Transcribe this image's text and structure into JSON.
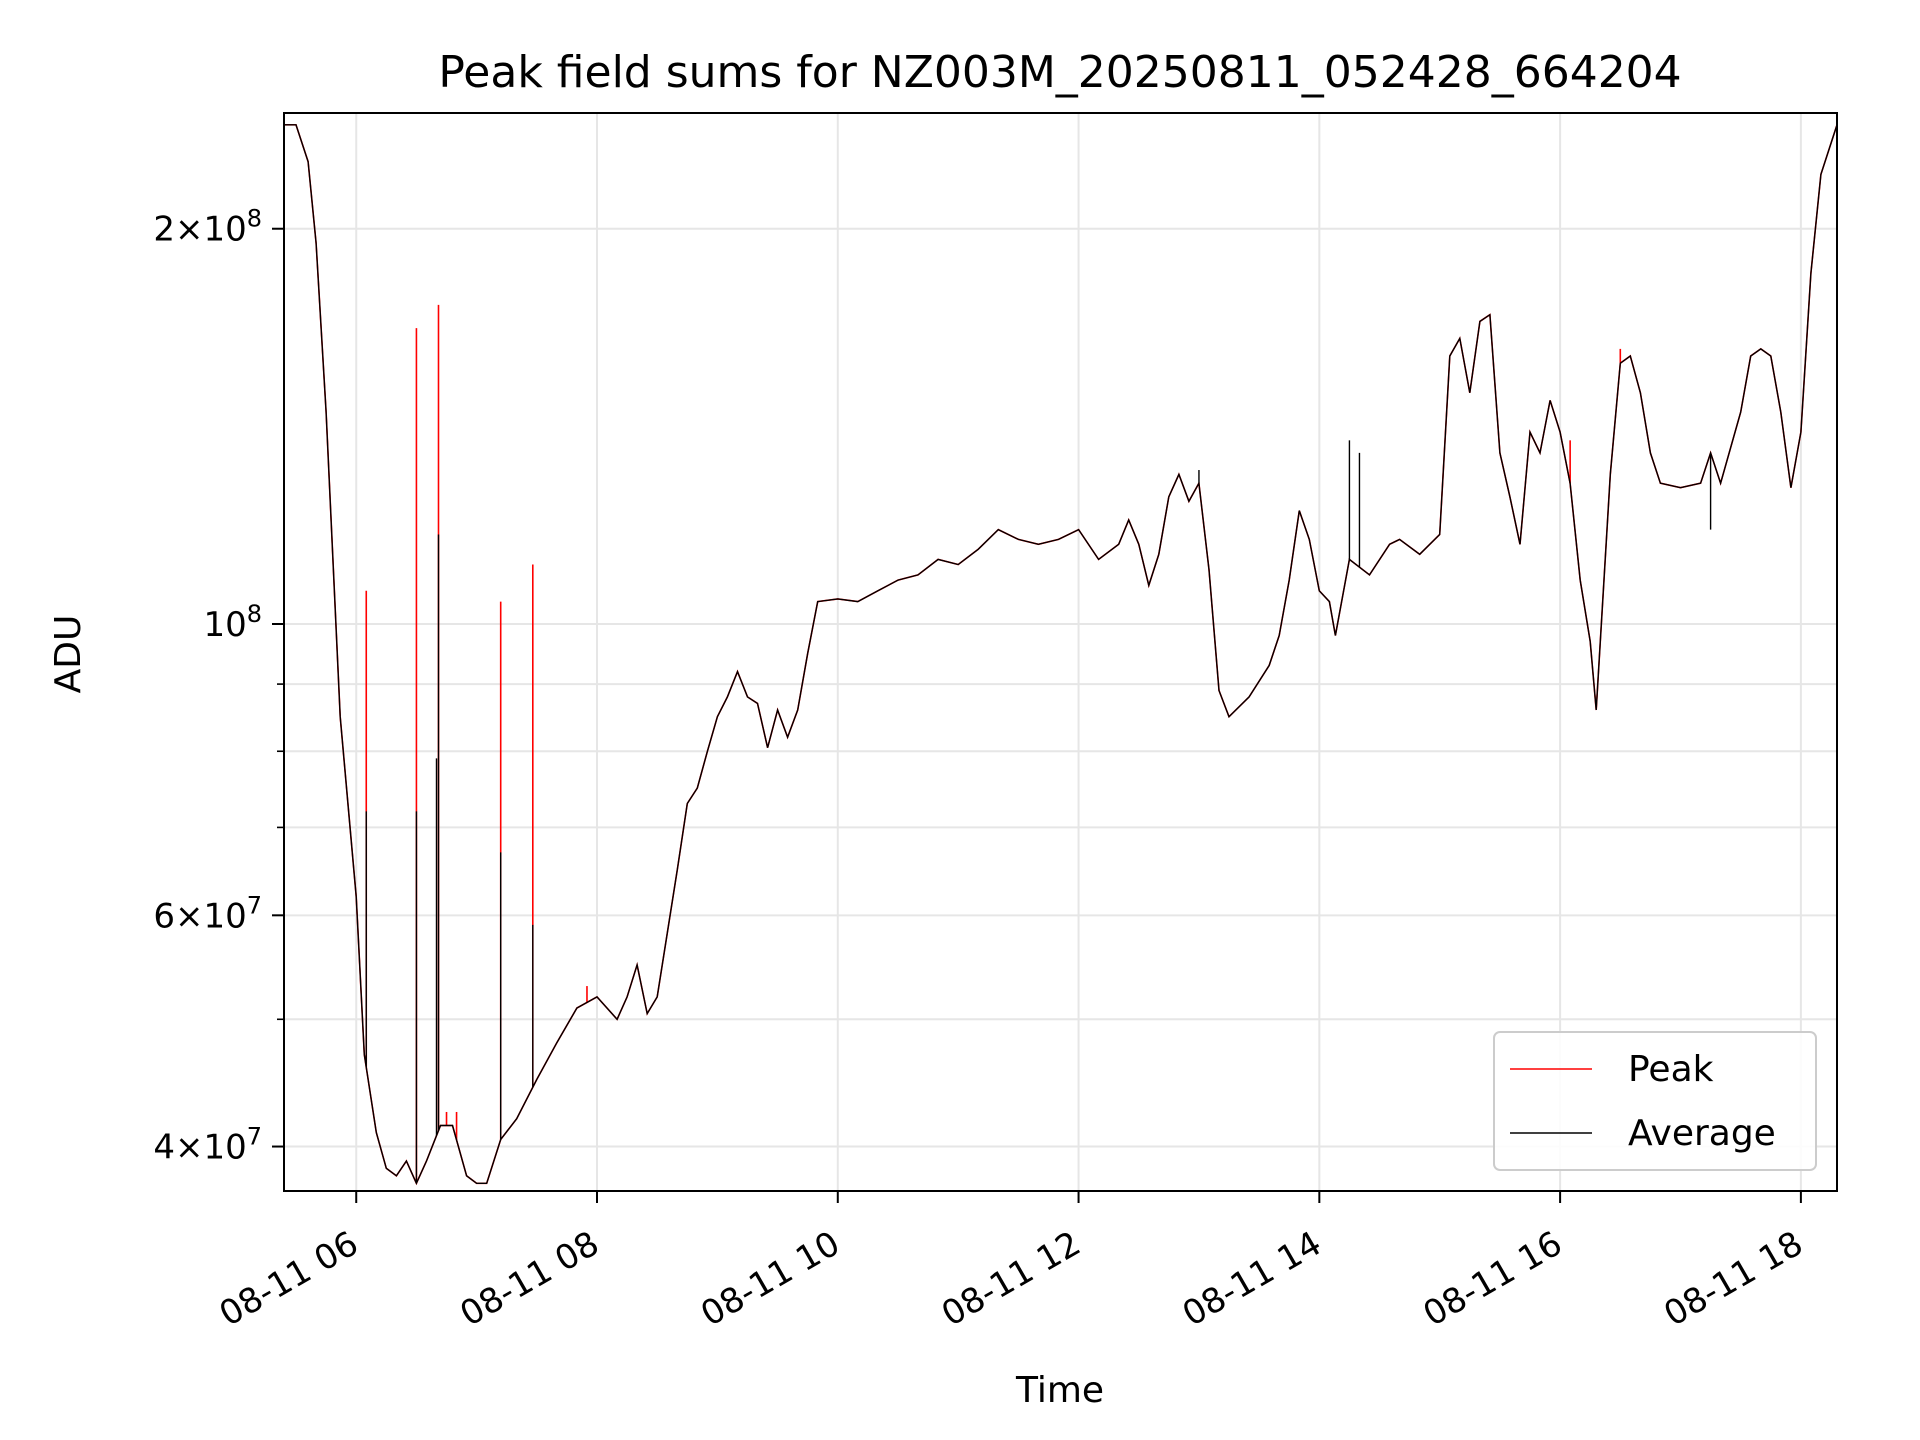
{
  "chart_data": {
    "type": "line",
    "title": "Peak field sums for NZ003M_20250811_052428_664204",
    "xlabel": "Time",
    "ylabel": "ADU",
    "x_range": [
      "2025-08-11 05:24",
      "2025-08-11 18:18"
    ],
    "y_scale": "log",
    "ylim": [
      37000000,
      245000000
    ],
    "grid": true,
    "legend_position": "lower right",
    "x_ticks": [
      {
        "time": "2025-08-11 06:00",
        "label": "08-11 06"
      },
      {
        "time": "2025-08-11 08:00",
        "label": "08-11 08"
      },
      {
        "time": "2025-08-11 10:00",
        "label": "08-11 10"
      },
      {
        "time": "2025-08-11 12:00",
        "label": "08-11 12"
      },
      {
        "time": "2025-08-11 14:00",
        "label": "08-11 14"
      },
      {
        "time": "2025-08-11 16:00",
        "label": "08-11 16"
      },
      {
        "time": "2025-08-11 18:00",
        "label": "08-11 18"
      }
    ],
    "y_ticks": [
      {
        "value": 40000000,
        "mant": "4",
        "exp": "7"
      },
      {
        "value": 60000000,
        "mant": "6",
        "exp": "7"
      },
      {
        "value": 100000000,
        "mant": "",
        "exp": "8"
      },
      {
        "value": 200000000,
        "mant": "2",
        "exp": "8"
      }
    ],
    "y_minor_ticks": [
      50000000,
      70000000,
      80000000,
      90000000
    ],
    "series": [
      {
        "name": "Average",
        "color": "#000000",
        "points": [
          [
            "05:24",
            240000000
          ],
          [
            "05:30",
            240000000
          ],
          [
            "05:36",
            225000000
          ],
          [
            "05:40",
            195000000
          ],
          [
            "05:45",
            145000000
          ],
          [
            "05:52",
            85000000
          ],
          [
            "06:00",
            62000000
          ],
          [
            "06:04",
            47000000
          ],
          [
            "06:10",
            41000000
          ],
          [
            "06:15",
            38500000
          ],
          [
            "06:20",
            38000000
          ],
          [
            "06:25",
            39000000
          ],
          [
            "06:30",
            37500000
          ],
          [
            "06:35",
            39000000
          ],
          [
            "06:42",
            41500000
          ],
          [
            "06:48",
            41500000
          ],
          [
            "06:55",
            38000000
          ],
          [
            "07:00",
            37500000
          ],
          [
            "07:05",
            37500000
          ],
          [
            "07:12",
            40500000
          ],
          [
            "07:20",
            42000000
          ],
          [
            "07:30",
            45000000
          ],
          [
            "07:40",
            48000000
          ],
          [
            "07:50",
            51000000
          ],
          [
            "08:00",
            52000000
          ],
          [
            "08:10",
            50000000
          ],
          [
            "08:15",
            52000000
          ],
          [
            "08:20",
            55000000
          ],
          [
            "08:25",
            50500000
          ],
          [
            "08:30",
            52000000
          ],
          [
            "08:40",
            65000000
          ],
          [
            "08:45",
            73000000
          ],
          [
            "08:50",
            75000000
          ],
          [
            "08:55",
            80000000
          ],
          [
            "09:00",
            85000000
          ],
          [
            "09:05",
            88000000
          ],
          [
            "09:10",
            92000000
          ],
          [
            "09:15",
            88000000
          ],
          [
            "09:20",
            87000000
          ],
          [
            "09:25",
            80500000
          ],
          [
            "09:30",
            86000000
          ],
          [
            "09:35",
            82000000
          ],
          [
            "09:40",
            86000000
          ],
          [
            "09:45",
            95000000
          ],
          [
            "09:50",
            104000000
          ],
          [
            "10:00",
            104500000
          ],
          [
            "10:10",
            104000000
          ],
          [
            "10:20",
            106000000
          ],
          [
            "10:30",
            108000000
          ],
          [
            "10:40",
            109000000
          ],
          [
            "10:50",
            112000000
          ],
          [
            "11:00",
            111000000
          ],
          [
            "11:10",
            114000000
          ],
          [
            "11:20",
            118000000
          ],
          [
            "11:30",
            116000000
          ],
          [
            "11:40",
            115000000
          ],
          [
            "11:50",
            116000000
          ],
          [
            "12:00",
            118000000
          ],
          [
            "12:10",
            112000000
          ],
          [
            "12:20",
            115000000
          ],
          [
            "12:25",
            120000000
          ],
          [
            "12:30",
            115000000
          ],
          [
            "12:35",
            107000000
          ],
          [
            "12:40",
            113000000
          ],
          [
            "12:45",
            125000000
          ],
          [
            "12:50",
            130000000
          ],
          [
            "12:55",
            124000000
          ],
          [
            "13:00",
            128000000
          ],
          [
            "13:05",
            110000000
          ],
          [
            "13:10",
            89000000
          ],
          [
            "13:15",
            85000000
          ],
          [
            "13:25",
            88000000
          ],
          [
            "13:35",
            93000000
          ],
          [
            "13:40",
            98000000
          ],
          [
            "13:45",
            108000000
          ],
          [
            "13:50",
            122000000
          ],
          [
            "13:55",
            116000000
          ],
          [
            "14:00",
            106000000
          ],
          [
            "14:05",
            104000000
          ],
          [
            "14:08",
            98000000
          ],
          [
            "14:15",
            112000000
          ],
          [
            "14:25",
            109000000
          ],
          [
            "14:35",
            115000000
          ],
          [
            "14:40",
            116000000
          ],
          [
            "14:50",
            113000000
          ],
          [
            "15:00",
            117000000
          ],
          [
            "15:05",
            160000000
          ],
          [
            "15:10",
            165000000
          ],
          [
            "15:15",
            150000000
          ],
          [
            "15:20",
            170000000
          ],
          [
            "15:25",
            172000000
          ],
          [
            "15:30",
            135000000
          ],
          [
            "15:35",
            125000000
          ],
          [
            "15:40",
            115000000
          ],
          [
            "15:45",
            140000000
          ],
          [
            "15:50",
            135000000
          ],
          [
            "15:55",
            148000000
          ],
          [
            "16:00",
            140000000
          ],
          [
            "16:05",
            128000000
          ],
          [
            "16:10",
            108000000
          ],
          [
            "16:15",
            97000000
          ],
          [
            "16:18",
            86000000
          ],
          [
            "16:25",
            130000000
          ],
          [
            "16:30",
            158000000
          ],
          [
            "16:35",
            160000000
          ],
          [
            "16:40",
            150000000
          ],
          [
            "16:45",
            135000000
          ],
          [
            "16:50",
            128000000
          ],
          [
            "17:00",
            127000000
          ],
          [
            "17:10",
            128000000
          ],
          [
            "17:15",
            135000000
          ],
          [
            "17:20",
            128000000
          ],
          [
            "17:30",
            145000000
          ],
          [
            "17:35",
            160000000
          ],
          [
            "17:40",
            162000000
          ],
          [
            "17:45",
            160000000
          ],
          [
            "17:50",
            145000000
          ],
          [
            "17:55",
            127000000
          ],
          [
            "18:00",
            140000000
          ],
          [
            "18:05",
            185000000
          ],
          [
            "18:10",
            220000000
          ],
          [
            "18:18",
            240000000
          ]
        ],
        "spikes": [
          [
            "06:05",
            72000000
          ],
          [
            "06:30",
            72000000
          ],
          [
            "06:40",
            79000000
          ],
          [
            "06:41",
            117000000
          ],
          [
            "07:12",
            67000000
          ],
          [
            "07:28",
            59000000
          ],
          [
            "13:00",
            131000000
          ],
          [
            "14:15",
            138000000
          ],
          [
            "14:20",
            135000000
          ],
          [
            "17:15",
            118000000
          ]
        ]
      },
      {
        "name": "Peak",
        "color": "#ff0000",
        "spikes": [
          [
            "06:05",
            106000000
          ],
          [
            "06:30",
            168000000
          ],
          [
            "06:41",
            175000000
          ],
          [
            "07:12",
            104000000
          ],
          [
            "07:28",
            111000000
          ],
          [
            "06:45",
            42500000
          ],
          [
            "06:50",
            42500000
          ],
          [
            "07:55",
            53000000
          ],
          [
            "16:05",
            138000000
          ],
          [
            "16:30",
            162000000
          ]
        ]
      }
    ]
  }
}
